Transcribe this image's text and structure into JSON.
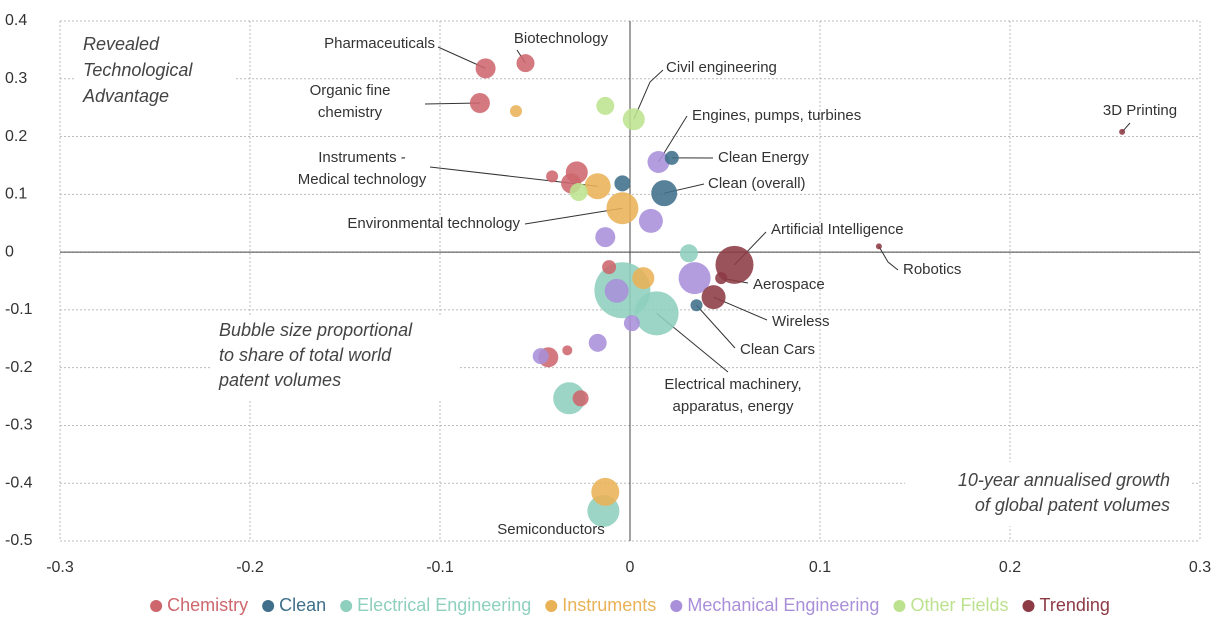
{
  "chart_data": {
    "type": "bubble",
    "y_label": "Revealed Technological Advantage",
    "x_label": "10-year annualised growth of global patent volumes",
    "note": "Bubble size proportional to share of total world patent volumes",
    "xlim": [
      -0.3,
      0.3
    ],
    "xticks": [
      -0.3,
      -0.2,
      -0.1,
      0,
      0.1,
      0.2,
      0.3
    ],
    "ylim": [
      -0.5,
      0.4
    ],
    "yticks": [
      0.4,
      0.3,
      0.2,
      0.1,
      0,
      -0.1,
      -0.2,
      -0.3,
      -0.4,
      -0.5
    ],
    "grid": true,
    "legend": "bottom",
    "series": [
      {
        "name": "Chemistry",
        "color": "#cd676d",
        "x": [
          -0.076,
          -0.055,
          -0.079,
          -0.041,
          -0.028,
          -0.031,
          -0.043,
          -0.033,
          -0.026,
          -0.011
        ],
        "y": [
          0.318,
          0.327,
          0.258,
          0.131,
          0.138,
          0.119,
          -0.182,
          -0.17,
          -0.253,
          -0.026
        ],
        "sizes": [
          100,
          81,
          100,
          36,
          121,
          100,
          100,
          25,
          64,
          49
        ],
        "labels": [
          "Pharmaceuticals",
          "Biotechnology",
          "Organic fine chemistry",
          null,
          null,
          null,
          null,
          null,
          null,
          null
        ]
      },
      {
        "name": "Clean",
        "color": "#3f6f8a",
        "x": [
          0.022,
          0.018,
          -0.004,
          0.035
        ],
        "y": [
          0.163,
          0.102,
          0.119,
          -0.092
        ],
        "sizes": [
          49,
          169,
          64,
          36
        ],
        "labels": [
          "Clean Energy",
          "Clean (overall)",
          null,
          "Clean Cars"
        ]
      },
      {
        "name": "Electrical Engineering",
        "color": "#8ecfbd",
        "x": [
          -0.032,
          -0.014,
          -0.004,
          0.014,
          0.031
        ],
        "y": [
          -0.253,
          -0.448,
          -0.066,
          -0.106,
          -0.002
        ],
        "sizes": [
          256,
          256,
          784,
          484,
          81
        ],
        "labels": [
          null,
          "Semiconductors",
          null,
          "Electrical machinery, apparatus, energy",
          null
        ]
      },
      {
        "name": "Instruments",
        "color": "#e9b257",
        "x": [
          -0.06,
          -0.017,
          -0.004,
          0.007,
          -0.013
        ],
        "y": [
          0.244,
          0.114,
          0.076,
          -0.045,
          -0.415
        ],
        "sizes": [
          36,
          169,
          256,
          121,
          196
        ],
        "labels": [
          null,
          "Instruments - Medical technology",
          "Environmental technology",
          null,
          null
        ]
      },
      {
        "name": "Mechanical Engineering",
        "color": "#a98fd9",
        "x": [
          0.015,
          0.011,
          -0.013,
          0.034,
          -0.007,
          0.001,
          -0.017,
          -0.047
        ],
        "y": [
          0.156,
          0.054,
          0.026,
          -0.045,
          -0.067,
          -0.123,
          -0.157,
          -0.18
        ],
        "sizes": [
          121,
          144,
          100,
          256,
          144,
          64,
          81,
          64
        ],
        "labels": [
          "Engines, pumps, turbines",
          null,
          null,
          null,
          null,
          null,
          null,
          null
        ]
      },
      {
        "name": "Other Fields",
        "color": "#bde28f",
        "x": [
          -0.013,
          0.002,
          -0.027
        ],
        "y": [
          0.253,
          0.23,
          0.104
        ],
        "sizes": [
          81,
          121,
          81
        ],
        "labels": [
          null,
          "Civil engineering",
          null
        ]
      },
      {
        "name": "Trending",
        "color": "#8c3a44",
        "x": [
          0.259,
          0.131,
          0.055,
          0.048,
          0.044
        ],
        "y": [
          0.208,
          0.01,
          -0.022,
          -0.045,
          -0.078
        ],
        "sizes": [
          9,
          9,
          361,
          36,
          144
        ],
        "labels": [
          "3D Printing",
          "Robotics",
          "Artificial Intelligence",
          "Aerospace",
          "Wireless"
        ]
      }
    ]
  }
}
